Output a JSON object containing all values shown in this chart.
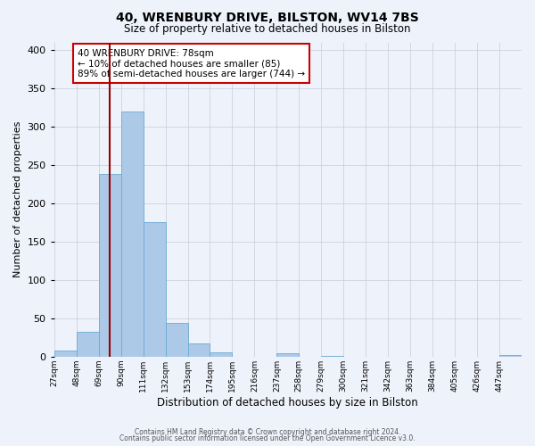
{
  "title": "40, WRENBURY DRIVE, BILSTON, WV14 7BS",
  "subtitle": "Size of property relative to detached houses in Bilston",
  "xlabel": "Distribution of detached houses by size in Bilston",
  "ylabel": "Number of detached properties",
  "footer_lines": [
    "Contains HM Land Registry data © Crown copyright and database right 2024.",
    "Contains public sector information licensed under the Open Government Licence v3.0."
  ],
  "bin_labels": [
    "27sqm",
    "48sqm",
    "69sqm",
    "90sqm",
    "111sqm",
    "132sqm",
    "153sqm",
    "174sqm",
    "195sqm",
    "216sqm",
    "237sqm",
    "258sqm",
    "279sqm",
    "300sqm",
    "321sqm",
    "342sqm",
    "363sqm",
    "384sqm",
    "405sqm",
    "426sqm",
    "447sqm"
  ],
  "bar_heights": [
    8,
    32,
    238,
    320,
    175,
    44,
    17,
    5,
    0,
    0,
    4,
    0,
    1,
    0,
    0,
    0,
    0,
    0,
    0,
    0,
    2
  ],
  "bar_color": "#adc9e8",
  "bar_edgecolor": "#6aaad4",
  "vline_x_bin": 2.5,
  "vline_color": "#990000",
  "annotation_line1": "40 WRENBURY DRIVE: 78sqm",
  "annotation_line2": "← 10% of detached houses are smaller (85)",
  "annotation_line3": "89% of semi-detached houses are larger (744) →",
  "annotation_box_edgecolor": "#cc0000",
  "annotation_box_facecolor": "#ffffff",
  "ylim": [
    0,
    410
  ],
  "yticks": [
    0,
    50,
    100,
    150,
    200,
    250,
    300,
    350,
    400
  ],
  "bin_count": 21,
  "background_color": "#eef2fb",
  "grid_color": "#c8ccd8",
  "title_fontsize": 10,
  "subtitle_fontsize": 8.5
}
